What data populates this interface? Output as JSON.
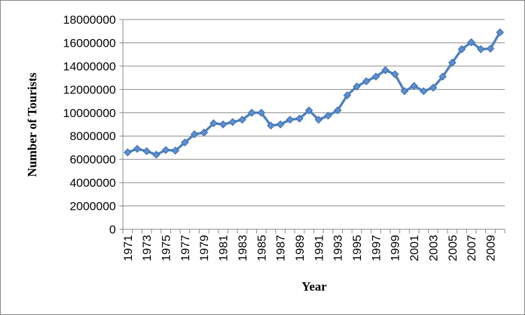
{
  "chart_data": {
    "type": "line",
    "xlabel": "Year",
    "ylabel": "Number of Tourists",
    "ylim": [
      0,
      18000000
    ],
    "yticks": [
      "0",
      "2000000",
      "4000000",
      "6000000",
      "8000000",
      "10000000",
      "12000000",
      "14000000",
      "16000000",
      "18000000"
    ],
    "x_tick_labels": [
      "1971",
      "1973",
      "1975",
      "1977",
      "1979",
      "1981",
      "1983",
      "1985",
      "1987",
      "1989",
      "1991",
      "1993",
      "1995",
      "1997",
      "1999",
      "2001",
      "2003",
      "2005",
      "2007",
      "2009"
    ],
    "grid": "horizontal",
    "legend": "none",
    "line_color": "#4f81bd",
    "series": [
      {
        "x": [
          1971,
          1972,
          1973,
          1974,
          1975,
          1976,
          1977,
          1978,
          1979,
          1980,
          1981,
          1982,
          1983,
          1984,
          1985,
          1986,
          1987,
          1988,
          1989,
          1990,
          1991,
          1992,
          1993,
          1994,
          1995,
          1996,
          1997,
          1998,
          1999,
          2000,
          2001,
          2002,
          2003,
          2004,
          2005,
          2006,
          2007,
          2008,
          2009,
          2010
        ],
        "values": [
          6600000,
          6900000,
          6700000,
          6400000,
          6800000,
          6750000,
          7450000,
          8150000,
          8300000,
          9100000,
          9000000,
          9200000,
          9400000,
          10000000,
          10000000,
          8900000,
          9000000,
          9400000,
          9500000,
          10200000,
          9400000,
          9750000,
          10200000,
          11500000,
          12250000,
          12700000,
          13100000,
          13650000,
          13300000,
          11850000,
          12300000,
          11850000,
          12150000,
          13100000,
          14300000,
          15450000,
          16050000,
          15450000,
          15500000,
          16900000
        ]
      }
    ]
  }
}
